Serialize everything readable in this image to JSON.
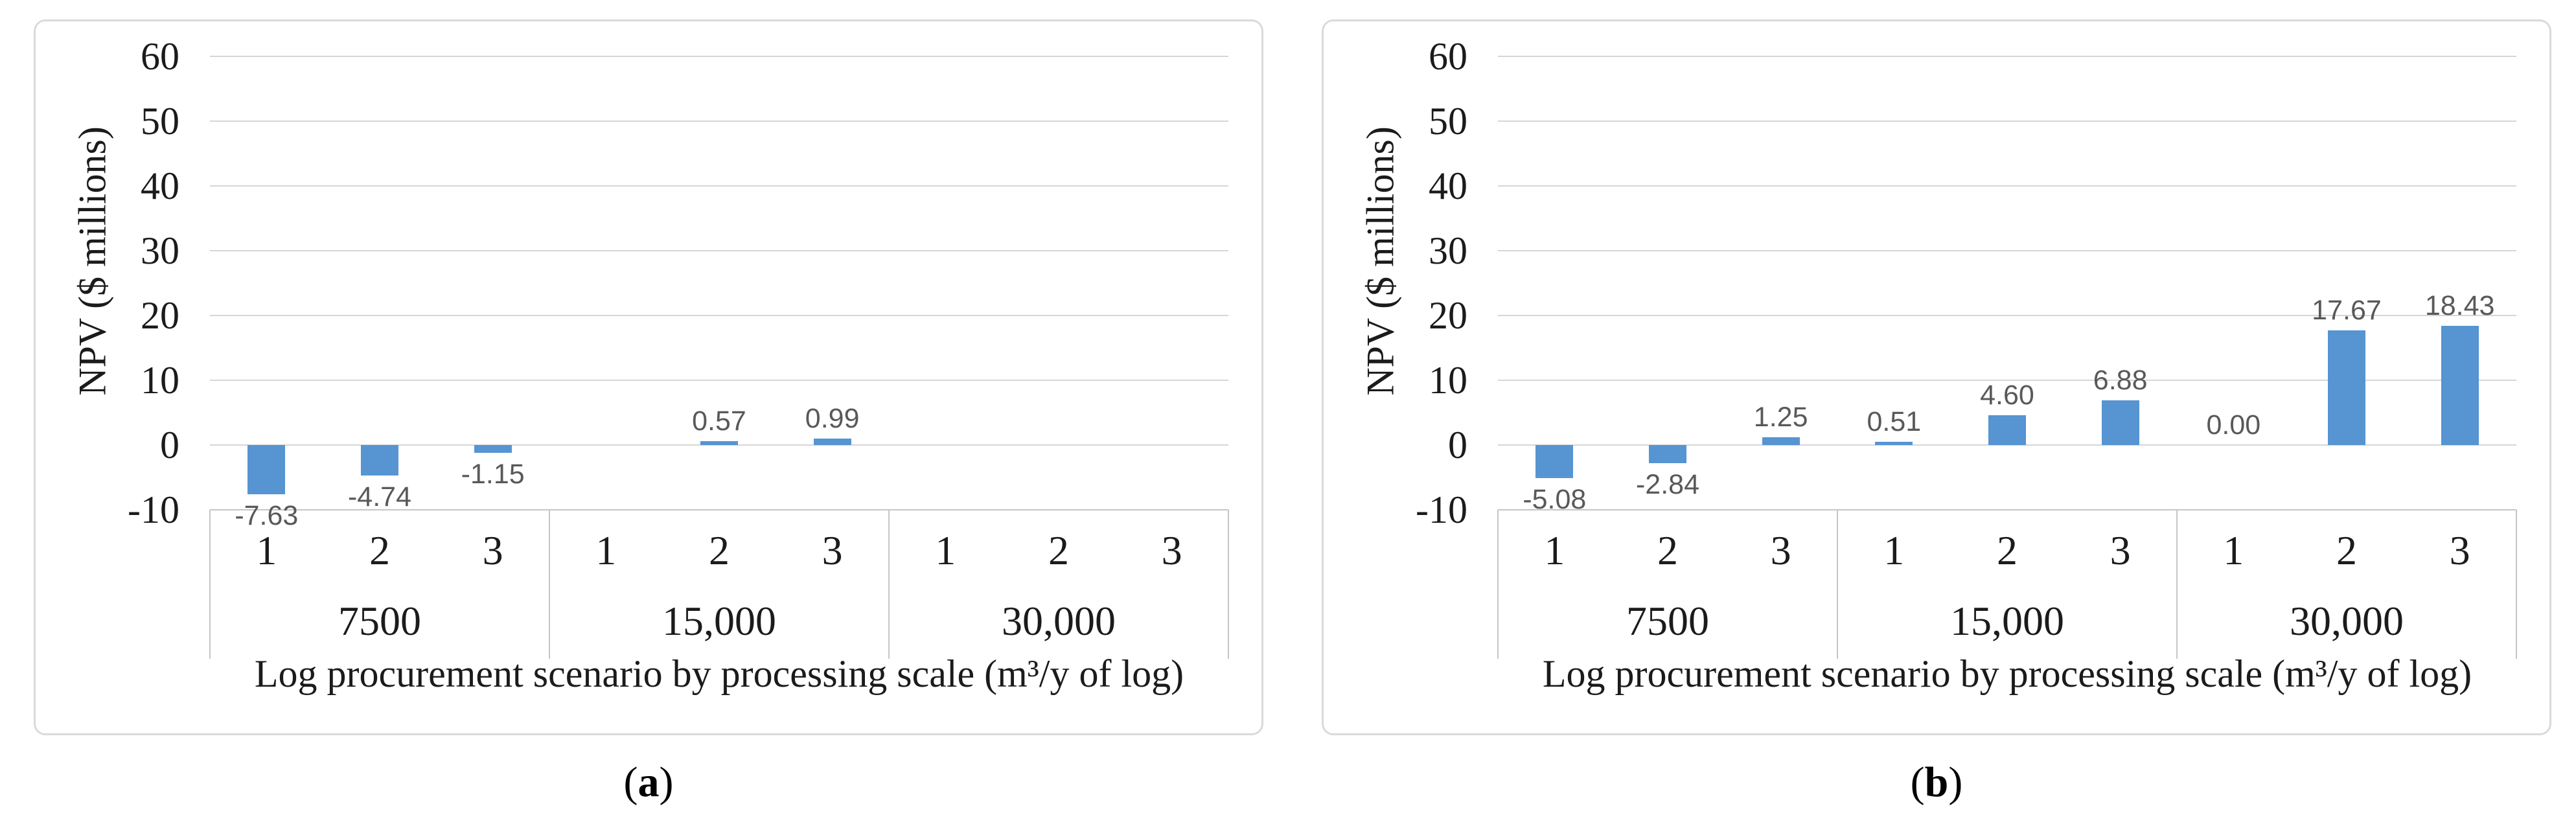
{
  "colors": {
    "bar": "#5694D2",
    "gridline": "#D6D6D6",
    "axis_line": "#C6C6C6",
    "panel_border": "#DADADA",
    "data_label": "#595959",
    "text": "#1B1B1B"
  },
  "captions": [
    {
      "open": "(",
      "letter": "a",
      "close": ")"
    },
    {
      "open": "(",
      "letter": "b",
      "close": ")"
    }
  ],
  "chart_data": [
    {
      "id": "a",
      "type": "bar",
      "title": "",
      "ylabel": "NPV ($ millions)",
      "xlabel": "Log procurement scenario by processing scale (m³/y of log)",
      "ylim": [
        -10,
        60
      ],
      "yticks": [
        60,
        50,
        40,
        30,
        20,
        10,
        0,
        -10
      ],
      "grid": true,
      "legend": false,
      "group_labels": [
        "7500",
        "15,000",
        "30,000"
      ],
      "categories": [
        "1",
        "2",
        "3",
        "1",
        "2",
        "3",
        "1",
        "2",
        "3"
      ],
      "values": [
        -7.63,
        -4.74,
        -1.15,
        null,
        0.57,
        0.99,
        null,
        null,
        null
      ],
      "data_labels": [
        "-7.63",
        "-4.74",
        "-1.15",
        "",
        "0.57",
        "0.99",
        "",
        "",
        ""
      ]
    },
    {
      "id": "b",
      "type": "bar",
      "title": "",
      "ylabel": "NPV ($ millions)",
      "xlabel": "Log procurement scenario by processing scale (m³/y of log)",
      "ylim": [
        -10,
        60
      ],
      "yticks": [
        60,
        50,
        40,
        30,
        20,
        10,
        0,
        -10
      ],
      "grid": true,
      "legend": false,
      "group_labels": [
        "7500",
        "15,000",
        "30,000"
      ],
      "categories": [
        "1",
        "2",
        "3",
        "1",
        "2",
        "3",
        "1",
        "2",
        "3"
      ],
      "values": [
        -5.08,
        -2.84,
        1.25,
        0.51,
        4.6,
        6.88,
        0,
        17.67,
        18.43
      ],
      "data_labels": [
        "-5.08",
        "-2.84",
        "1.25",
        "0.51",
        "4.60",
        "6.88",
        "0.00",
        "17.67",
        "18.43"
      ]
    }
  ]
}
